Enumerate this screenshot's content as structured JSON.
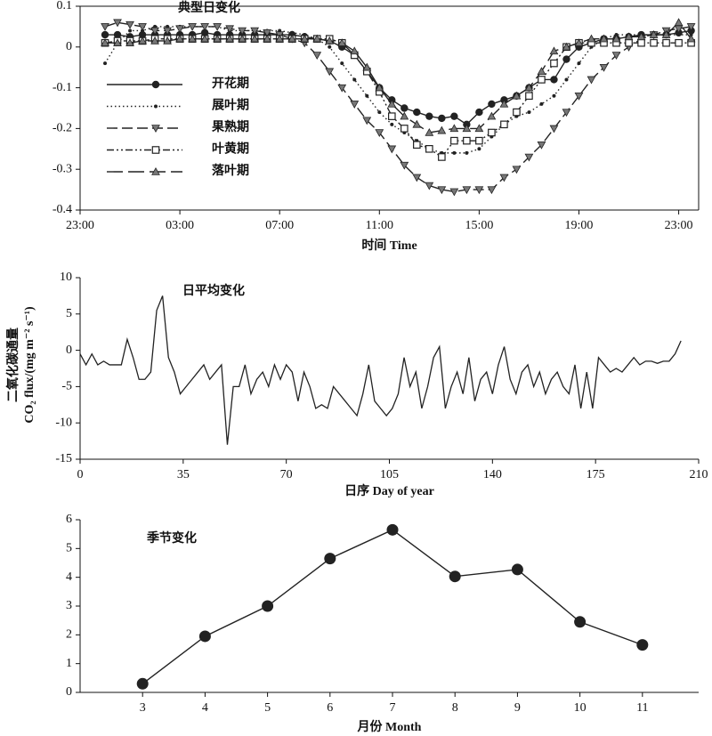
{
  "chart_data": [
    {
      "type": "line",
      "title": "典型日变化",
      "xlabel": "时间 Time",
      "box": true,
      "legend": "upper left",
      "xlim": [
        -1,
        23.8
      ],
      "ylim": [
        -0.4,
        0.1
      ],
      "xticks": [
        {
          "value": -1,
          "label": "23:00"
        },
        {
          "value": 3,
          "label": "03:00"
        },
        {
          "value": 7,
          "label": "07:00"
        },
        {
          "value": 11,
          "label": "11:00"
        },
        {
          "value": 15,
          "label": "15:00"
        },
        {
          "value": 19,
          "label": "19:00"
        },
        {
          "value": 23,
          "label": "23:00"
        }
      ],
      "yticks": [
        0.1,
        0,
        -0.1,
        -0.2,
        -0.3,
        -0.4
      ],
      "x": [
        0,
        0.5,
        1,
        1.5,
        2,
        2.5,
        3,
        3.5,
        4,
        4.5,
        5,
        5.5,
        6,
        6.5,
        7,
        7.5,
        8,
        8.5,
        9,
        9.5,
        10,
        10.5,
        11,
        11.5,
        12,
        12.5,
        13,
        13.5,
        14,
        14.5,
        15,
        15.5,
        16,
        16.5,
        17,
        17.5,
        18,
        18.5,
        19,
        19.5,
        20,
        20.5,
        21,
        21.5,
        22,
        22.5,
        23,
        23.5
      ],
      "series": [
        {
          "name": "开花期",
          "color": "#222",
          "marker": "circle",
          "linestyle": "solid",
          "values": [
            0.03,
            0.03,
            0.025,
            0.03,
            0.03,
            0.03,
            0.03,
            0.03,
            0.035,
            0.03,
            0.03,
            0.03,
            0.03,
            0.03,
            0.03,
            0.03,
            0.025,
            0.02,
            0.015,
            0,
            -0.02,
            -0.06,
            -0.1,
            -0.13,
            -0.15,
            -0.16,
            -0.17,
            -0.175,
            -0.17,
            -0.19,
            -0.16,
            -0.14,
            -0.13,
            -0.12,
            -0.1,
            -0.08,
            -0.08,
            -0.03,
            0,
            0.01,
            0.02,
            0.02,
            0.025,
            0.03,
            0.03,
            0.03,
            0.035,
            0.04
          ]
        },
        {
          "name": "展叶期",
          "color": "#222",
          "marker": "dot",
          "linestyle": "dotted",
          "values": [
            -0.04,
            0.01,
            0.04,
            0.04,
            0.05,
            0.05,
            0.05,
            0.05,
            0.05,
            0.05,
            0.04,
            0.04,
            0.04,
            0.04,
            0.04,
            0.035,
            0.03,
            0.02,
            0,
            -0.04,
            -0.08,
            -0.12,
            -0.16,
            -0.19,
            -0.21,
            -0.23,
            -0.25,
            -0.26,
            -0.26,
            -0.26,
            -0.25,
            -0.22,
            -0.19,
            -0.17,
            -0.16,
            -0.14,
            -0.12,
            -0.08,
            -0.04,
            0,
            0.02,
            0.03,
            0.03,
            0.03,
            0.03,
            0.03,
            0.03,
            0.03
          ]
        },
        {
          "name": "果熟期",
          "color": "#222",
          "marker": "triangle-down",
          "linestyle": "dashed",
          "values": [
            0.05,
            0.06,
            0.055,
            0.05,
            0.04,
            0.04,
            0.045,
            0.05,
            0.05,
            0.05,
            0.045,
            0.04,
            0.04,
            0.035,
            0.03,
            0.02,
            0.01,
            -0.02,
            -0.06,
            -0.1,
            -0.14,
            -0.18,
            -0.21,
            -0.25,
            -0.29,
            -0.32,
            -0.34,
            -0.35,
            -0.355,
            -0.35,
            -0.35,
            -0.35,
            -0.32,
            -0.3,
            -0.27,
            -0.24,
            -0.2,
            -0.16,
            -0.12,
            -0.08,
            -0.05,
            -0.02,
            0,
            0.02,
            0.03,
            0.04,
            0.045,
            0.05
          ]
        },
        {
          "name": "叶黄期",
          "color": "#222",
          "marker": "square",
          "linestyle": "dashdotdot",
          "values": [
            0.01,
            0.015,
            0.015,
            0.015,
            0.02,
            0.02,
            0.02,
            0.02,
            0.02,
            0.02,
            0.02,
            0.02,
            0.02,
            0.02,
            0.02,
            0.02,
            0.02,
            0.02,
            0.02,
            0.01,
            -0.02,
            -0.06,
            -0.11,
            -0.17,
            -0.2,
            -0.24,
            -0.25,
            -0.27,
            -0.23,
            -0.23,
            -0.23,
            -0.21,
            -0.19,
            -0.16,
            -0.12,
            -0.08,
            -0.04,
            0,
            0.01,
            0.01,
            0.01,
            0.01,
            0.01,
            0.01,
            0.01,
            0.01,
            0.01,
            0.01
          ]
        },
        {
          "name": "落叶期",
          "color": "#222",
          "marker": "triangle-up",
          "linestyle": "longdash",
          "values": [
            0.01,
            0.01,
            0.01,
            0.015,
            0.015,
            0.015,
            0.02,
            0.02,
            0.02,
            0.02,
            0.02,
            0.02,
            0.02,
            0.02,
            0.02,
            0.02,
            0.02,
            0.02,
            0.015,
            0.01,
            -0.01,
            -0.05,
            -0.1,
            -0.14,
            -0.17,
            -0.19,
            -0.21,
            -0.205,
            -0.2,
            -0.2,
            -0.2,
            -0.17,
            -0.14,
            -0.12,
            -0.1,
            -0.06,
            -0.01,
            0,
            0.01,
            0.02,
            0.02,
            0.02,
            0.025,
            0.025,
            0.03,
            0.03,
            0.06,
            0.02
          ]
        }
      ]
    },
    {
      "type": "line",
      "title": "日平均变化",
      "xlabel": "日序 Day of year",
      "ylabel": [
        "二氧化碳通量",
        "CO₂ flux/(mg m⁻² s⁻¹)"
      ],
      "xlim": [
        0,
        210
      ],
      "ylim": [
        -15,
        10
      ],
      "xticks": [
        0,
        35,
        70,
        105,
        140,
        175,
        210
      ],
      "yticks": [
        10,
        5,
        0,
        -5,
        -10,
        -15
      ],
      "x": [
        0,
        2,
        4,
        6,
        8,
        10,
        12,
        14,
        16,
        18,
        20,
        22,
        24,
        26,
        28,
        30,
        32,
        34,
        36,
        38,
        40,
        42,
        44,
        46,
        48,
        50,
        52,
        54,
        56,
        58,
        60,
        62,
        64,
        66,
        68,
        70,
        72,
        74,
        76,
        78,
        80,
        82,
        84,
        86,
        88,
        90,
        92,
        94,
        96,
        98,
        100,
        102,
        104,
        106,
        108,
        110,
        112,
        114,
        116,
        118,
        120,
        122,
        124,
        126,
        128,
        130,
        132,
        134,
        136,
        138,
        140,
        142,
        144,
        146,
        148,
        150,
        152,
        154,
        156,
        158,
        160,
        162,
        164,
        166,
        168,
        170,
        172,
        174,
        176,
        178,
        180,
        182,
        184,
        186,
        188,
        190,
        192,
        194,
        196,
        198,
        200,
        202,
        204
      ],
      "series": [
        {
          "color": "#222",
          "marker": "none",
          "linestyle": "solid",
          "values": [
            -0.5,
            -2,
            -0.5,
            -2,
            -1.5,
            -2,
            -2,
            -2,
            1.5,
            -1,
            -4,
            -4,
            -3,
            5.5,
            7.5,
            -1,
            -3,
            -6,
            -5,
            -4,
            -3,
            -2,
            -4,
            -3,
            -2,
            -13,
            -5,
            -5,
            -2,
            -6,
            -4,
            -3,
            -5,
            -2,
            -4,
            -2,
            -3,
            -7,
            -3,
            -5,
            -8,
            -7.5,
            -8,
            -5,
            -6,
            -7,
            -8,
            -9,
            -6,
            -2,
            -7,
            -8,
            -9,
            -8,
            -6,
            -1,
            -5,
            -3,
            -8,
            -5,
            -1,
            0.5,
            -8,
            -5,
            -3,
            -6,
            -1,
            -7,
            -4,
            -3,
            -6,
            -2,
            0.5,
            -4,
            -6,
            -3,
            -2,
            -5,
            -3,
            -6,
            -4,
            -3,
            -5,
            -6,
            -2,
            -8,
            -3,
            -8,
            -1,
            -2,
            -3,
            -2.5,
            -3,
            -2,
            -1,
            -2,
            -1.5,
            -1.5,
            -1.8,
            -1.5,
            -1.5,
            -0.5,
            1.3
          ]
        }
      ]
    },
    {
      "type": "line",
      "title": "季节变化",
      "xlabel": "月份 Month",
      "xlim": [
        2,
        11.9
      ],
      "ylim": [
        0,
        6
      ],
      "xticks": [
        3,
        4,
        5,
        6,
        7,
        8,
        9,
        10,
        11
      ],
      "yticks": [
        0,
        1,
        2,
        3,
        4,
        5,
        6
      ],
      "x": [
        3,
        4,
        5,
        6,
        7,
        8,
        9,
        10,
        11
      ],
      "series": [
        {
          "color": "#222",
          "marker": "circle",
          "linestyle": "solid",
          "values": [
            0.3,
            1.95,
            3.0,
            4.65,
            5.65,
            4.03,
            4.27,
            2.45,
            1.65
          ]
        }
      ]
    }
  ]
}
